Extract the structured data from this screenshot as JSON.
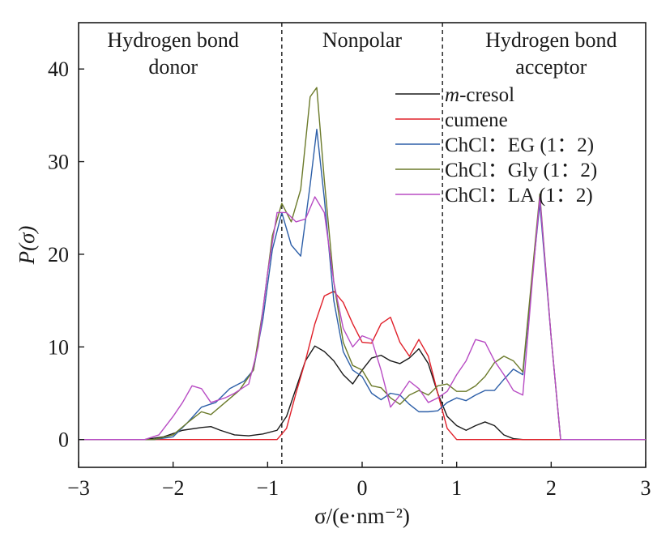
{
  "chart_data": {
    "type": "line",
    "xlabel": "σ/(e·nm⁻²)",
    "ylabel": "P(σ)",
    "xlim": [
      -3,
      3
    ],
    "ylim": [
      -3,
      45
    ],
    "x_ticks": [
      -3,
      -2,
      -1,
      0,
      1,
      2,
      3
    ],
    "y_ticks": [
      0,
      10,
      20,
      30,
      40
    ],
    "x_tick_labels": [
      "−3",
      "−2",
      "−1",
      "0",
      "1",
      "2",
      "3"
    ],
    "y_tick_labels": [
      "0",
      "10",
      "20",
      "30",
      "40"
    ],
    "grid": false,
    "legend_position": "top-right",
    "dividers": [
      -0.85,
      0.85
    ],
    "regions": [
      {
        "lines": [
          "Hydrogen bond",
          "donor"
        ],
        "x": -2.0
      },
      {
        "lines": [
          "Nonpolar"
        ],
        "x": 0.0
      },
      {
        "lines": [
          "Hydrogen bond",
          "acceptor"
        ],
        "x": 2.0
      }
    ],
    "series": [
      {
        "name": "m-cresol",
        "name_parts": [
          {
            "text": "m",
            "italic": true
          },
          {
            "text": "-cresol",
            "italic": false
          }
        ],
        "color": "#1a1a1a",
        "points": [
          [
            -3,
            0
          ],
          [
            -2.3,
            0
          ],
          [
            -2.1,
            0.3
          ],
          [
            -1.9,
            1.0
          ],
          [
            -1.7,
            1.3
          ],
          [
            -1.6,
            1.4
          ],
          [
            -1.5,
            1.0
          ],
          [
            -1.35,
            0.5
          ],
          [
            -1.2,
            0.4
          ],
          [
            -1.05,
            0.6
          ],
          [
            -0.9,
            1.0
          ],
          [
            -0.8,
            2.5
          ],
          [
            -0.7,
            5.5
          ],
          [
            -0.6,
            8.5
          ],
          [
            -0.5,
            10.1
          ],
          [
            -0.4,
            9.5
          ],
          [
            -0.3,
            8.5
          ],
          [
            -0.2,
            7.0
          ],
          [
            -0.1,
            6.0
          ],
          [
            0.0,
            7.5
          ],
          [
            0.1,
            8.8
          ],
          [
            0.2,
            9.1
          ],
          [
            0.3,
            8.5
          ],
          [
            0.4,
            8.2
          ],
          [
            0.5,
            8.8
          ],
          [
            0.6,
            9.8
          ],
          [
            0.7,
            8.2
          ],
          [
            0.8,
            5.0
          ],
          [
            0.9,
            2.5
          ],
          [
            1.0,
            1.5
          ],
          [
            1.1,
            1.0
          ],
          [
            1.2,
            1.5
          ],
          [
            1.3,
            1.9
          ],
          [
            1.4,
            1.5
          ],
          [
            1.5,
            0.5
          ],
          [
            1.6,
            0.1
          ],
          [
            1.7,
            0
          ],
          [
            3,
            0
          ]
        ]
      },
      {
        "name": "cumene",
        "color": "#e0202a",
        "points": [
          [
            -3,
            0
          ],
          [
            -0.9,
            0
          ],
          [
            -0.8,
            1.2
          ],
          [
            -0.7,
            5.0
          ],
          [
            -0.6,
            8.5
          ],
          [
            -0.5,
            12.5
          ],
          [
            -0.4,
            15.5
          ],
          [
            -0.3,
            16.0
          ],
          [
            -0.2,
            14.8
          ],
          [
            -0.1,
            12.5
          ],
          [
            0.0,
            10.5
          ],
          [
            0.1,
            10.4
          ],
          [
            0.2,
            12.5
          ],
          [
            0.3,
            13.2
          ],
          [
            0.4,
            10.5
          ],
          [
            0.5,
            9.0
          ],
          [
            0.6,
            10.8
          ],
          [
            0.7,
            9.0
          ],
          [
            0.8,
            5.0
          ],
          [
            0.9,
            1.2
          ],
          [
            1.0,
            0
          ],
          [
            3,
            0
          ]
        ]
      },
      {
        "name": "ChCl：EG (1：2)",
        "color": "#2d5fa8",
        "points": [
          [
            -3,
            0
          ],
          [
            -2.2,
            0
          ],
          [
            -2.0,
            0.3
          ],
          [
            -1.85,
            1.8
          ],
          [
            -1.7,
            3.5
          ],
          [
            -1.55,
            4.0
          ],
          [
            -1.4,
            5.5
          ],
          [
            -1.25,
            6.3
          ],
          [
            -1.15,
            7.5
          ],
          [
            -1.05,
            13.0
          ],
          [
            -0.95,
            20.5
          ],
          [
            -0.85,
            24.5
          ],
          [
            -0.75,
            21.0
          ],
          [
            -0.65,
            19.8
          ],
          [
            -0.55,
            27.5
          ],
          [
            -0.48,
            33.5
          ],
          [
            -0.4,
            26.0
          ],
          [
            -0.3,
            15.0
          ],
          [
            -0.2,
            9.5
          ],
          [
            -0.1,
            7.5
          ],
          [
            0.0,
            6.8
          ],
          [
            0.1,
            5.0
          ],
          [
            0.2,
            4.3
          ],
          [
            0.3,
            5.0
          ],
          [
            0.4,
            4.8
          ],
          [
            0.5,
            3.8
          ],
          [
            0.6,
            3.0
          ],
          [
            0.7,
            3.0
          ],
          [
            0.8,
            3.1
          ],
          [
            0.9,
            4.0
          ],
          [
            1.0,
            4.5
          ],
          [
            1.1,
            4.2
          ],
          [
            1.2,
            4.8
          ],
          [
            1.3,
            5.3
          ],
          [
            1.4,
            5.3
          ],
          [
            1.5,
            6.5
          ],
          [
            1.6,
            7.6
          ],
          [
            1.7,
            7.0
          ],
          [
            1.8,
            17.5
          ],
          [
            1.88,
            25.5
          ],
          [
            2.0,
            11.0
          ],
          [
            2.1,
            0
          ],
          [
            3,
            0
          ]
        ]
      },
      {
        "name": "ChCl：Gly (1：2)",
        "color": "#6b7a2a",
        "points": [
          [
            -3,
            0
          ],
          [
            -2.2,
            0
          ],
          [
            -2.0,
            0.5
          ],
          [
            -1.85,
            1.8
          ],
          [
            -1.7,
            3.0
          ],
          [
            -1.6,
            2.7
          ],
          [
            -1.45,
            4.0
          ],
          [
            -1.3,
            5.3
          ],
          [
            -1.15,
            7.5
          ],
          [
            -1.05,
            14.0
          ],
          [
            -0.95,
            22.0
          ],
          [
            -0.85,
            25.5
          ],
          [
            -0.75,
            23.5
          ],
          [
            -0.65,
            27.0
          ],
          [
            -0.55,
            37.0
          ],
          [
            -0.48,
            38.0
          ],
          [
            -0.4,
            28.0
          ],
          [
            -0.3,
            17.0
          ],
          [
            -0.2,
            10.5
          ],
          [
            -0.1,
            8.0
          ],
          [
            0.0,
            7.5
          ],
          [
            0.1,
            5.8
          ],
          [
            0.2,
            5.6
          ],
          [
            0.3,
            4.5
          ],
          [
            0.4,
            3.8
          ],
          [
            0.5,
            4.8
          ],
          [
            0.6,
            5.3
          ],
          [
            0.7,
            4.8
          ],
          [
            0.8,
            5.8
          ],
          [
            0.9,
            6.0
          ],
          [
            1.0,
            5.2
          ],
          [
            1.1,
            5.2
          ],
          [
            1.2,
            5.8
          ],
          [
            1.3,
            6.8
          ],
          [
            1.4,
            8.3
          ],
          [
            1.5,
            9.0
          ],
          [
            1.6,
            8.5
          ],
          [
            1.7,
            7.3
          ],
          [
            1.8,
            18.0
          ],
          [
            1.88,
            26.5
          ],
          [
            2.0,
            11.0
          ],
          [
            2.1,
            0
          ],
          [
            3,
            0
          ]
        ]
      },
      {
        "name": "ChCl：LA (1：2)",
        "color": "#b84cc4",
        "points": [
          [
            -3,
            0
          ],
          [
            -2.3,
            0
          ],
          [
            -2.15,
            0.5
          ],
          [
            -2.0,
            2.5
          ],
          [
            -1.9,
            4.0
          ],
          [
            -1.8,
            5.8
          ],
          [
            -1.7,
            5.5
          ],
          [
            -1.6,
            4.0
          ],
          [
            -1.45,
            4.5
          ],
          [
            -1.35,
            5.0
          ],
          [
            -1.2,
            6.0
          ],
          [
            -1.1,
            10.0
          ],
          [
            -1.0,
            18.0
          ],
          [
            -0.9,
            24.5
          ],
          [
            -0.8,
            24.5
          ],
          [
            -0.7,
            23.5
          ],
          [
            -0.6,
            23.8
          ],
          [
            -0.5,
            26.2
          ],
          [
            -0.4,
            24.5
          ],
          [
            -0.3,
            17.0
          ],
          [
            -0.2,
            12.0
          ],
          [
            -0.1,
            10.0
          ],
          [
            0.0,
            11.2
          ],
          [
            0.1,
            10.8
          ],
          [
            0.2,
            7.5
          ],
          [
            0.3,
            3.5
          ],
          [
            0.4,
            4.8
          ],
          [
            0.5,
            6.3
          ],
          [
            0.6,
            5.5
          ],
          [
            0.7,
            4.0
          ],
          [
            0.8,
            4.5
          ],
          [
            0.9,
            5.2
          ],
          [
            1.0,
            7.0
          ],
          [
            1.1,
            8.5
          ],
          [
            1.2,
            10.8
          ],
          [
            1.3,
            10.5
          ],
          [
            1.4,
            8.5
          ],
          [
            1.5,
            7.0
          ],
          [
            1.6,
            5.3
          ],
          [
            1.7,
            4.8
          ],
          [
            1.8,
            17.0
          ],
          [
            1.88,
            26.2
          ],
          [
            2.0,
            11.0
          ],
          [
            2.1,
            0
          ],
          [
            3,
            0
          ]
        ]
      }
    ]
  }
}
